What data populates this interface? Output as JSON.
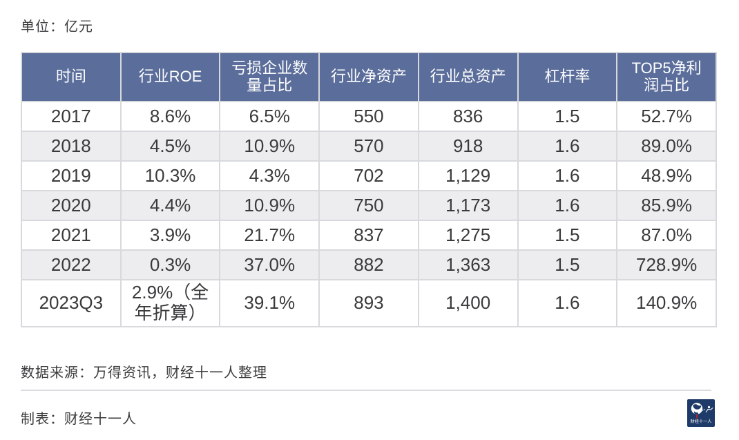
{
  "page": {
    "unit_label": "单位：亿元",
    "source_note": "数据来源：万得资讯，财经十一人整理",
    "maker_note": "制表：财经十一人",
    "logo": {
      "text": "财经十一人"
    }
  },
  "chart_data": {
    "type": "table",
    "unit": "亿元",
    "columns": [
      "时间",
      "行业ROE",
      "亏损企业数量占比",
      "行业净资产",
      "行业总资产",
      "杠杆率",
      "TOP5净利润占比"
    ],
    "rows": [
      [
        "2017",
        "8.6%",
        "6.5%",
        "550",
        "836",
        "1.5",
        "52.7%"
      ],
      [
        "2018",
        "4.5%",
        "10.9%",
        "570",
        "918",
        "1.6",
        "89.0%"
      ],
      [
        "2019",
        "10.3%",
        "4.3%",
        "702",
        "1,129",
        "1.6",
        "48.9%"
      ],
      [
        "2020",
        "4.4%",
        "10.9%",
        "750",
        "1,173",
        "1.6",
        "85.9%"
      ],
      [
        "2021",
        "3.9%",
        "21.7%",
        "837",
        "1,275",
        "1.5",
        "87.0%"
      ],
      [
        "2022",
        "0.3%",
        "37.0%",
        "882",
        "1,363",
        "1.5",
        "728.9%"
      ],
      [
        "2023Q3",
        "2.9%（全年折算）",
        "39.1%",
        "893",
        "1,400",
        "1.6",
        "140.9%"
      ]
    ]
  },
  "colors": {
    "header_bg": "#5b6e9b",
    "header_text": "#ffffff",
    "row_alt_bg": "#ededf0",
    "cell_border": "#d8d9dd",
    "body_text": "#3a3a3c",
    "note_text": "#3c3c3e",
    "divider": "#dcdce0",
    "logo_bg": "#1e3a68",
    "logo_accent": "#c8202f"
  }
}
